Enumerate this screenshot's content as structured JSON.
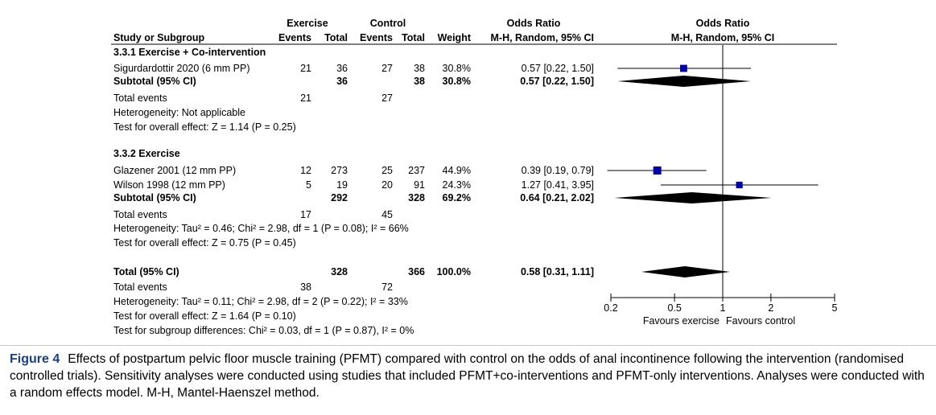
{
  "chart_data": {
    "type": "forest",
    "headers": {
      "exercise": "Exercise",
      "control": "Control",
      "odds_ratio_text": "Odds Ratio",
      "odds_ratio_plot": "Odds Ratio",
      "study": "Study or Subgroup",
      "events1": "Events",
      "total1": "Total",
      "events2": "Events",
      "total2": "Total",
      "weight": "Weight",
      "method_text": "M-H, Random, 95% CI",
      "method_plot": "M-H, Random, 95% CI"
    },
    "subgroups": [
      {
        "title": "3.3.1 Exercise + Co-intervention",
        "studies": [
          {
            "name": "Sigurdardottir 2020 (6 mm PP)",
            "e1": "21",
            "t1": "36",
            "e2": "27",
            "t2": "38",
            "weight": "30.8%",
            "ci_text": "0.57 [0.22, 1.50]",
            "or": 0.57,
            "low": 0.22,
            "high": 1.5,
            "w": 30.8
          }
        ],
        "subtotal": {
          "label": "Subtotal (95% CI)",
          "t1": "36",
          "t2": "38",
          "weight": "30.8%",
          "ci_text": "0.57 [0.22, 1.50]",
          "or": 0.57,
          "low": 0.22,
          "high": 1.5
        },
        "total_events": {
          "label": "Total events",
          "e1": "21",
          "e2": "27"
        },
        "heterogeneity": "Heterogeneity: Not applicable",
        "overall_effect": "Test for overall effect: Z = 1.14 (P = 0.25)"
      },
      {
        "title": "3.3.2 Exercise",
        "studies": [
          {
            "name": "Glazener 2001 (12 mm PP)",
            "e1": "12",
            "t1": "273",
            "e2": "25",
            "t2": "237",
            "weight": "44.9%",
            "ci_text": "0.39 [0.19, 0.79]",
            "or": 0.39,
            "low": 0.19,
            "high": 0.79,
            "w": 44.9
          },
          {
            "name": "Wilson 1998 (12 mm PP)",
            "e1": "5",
            "t1": "19",
            "e2": "20",
            "t2": "91",
            "weight": "24.3%",
            "ci_text": "1.27 [0.41, 3.95]",
            "or": 1.27,
            "low": 0.41,
            "high": 3.95,
            "w": 24.3
          }
        ],
        "subtotal": {
          "label": "Subtotal (95% CI)",
          "t1": "292",
          "t2": "328",
          "weight": "69.2%",
          "ci_text": "0.64 [0.21, 2.02]",
          "or": 0.64,
          "low": 0.21,
          "high": 2.02
        },
        "total_events": {
          "label": "Total events",
          "e1": "17",
          "e2": "45"
        },
        "heterogeneity": "Heterogeneity: Tau² = 0.46; Chi² = 2.98, df = 1 (P = 0.08); I² = 66%",
        "overall_effect": "Test for overall effect: Z = 0.75 (P = 0.45)"
      }
    ],
    "total": {
      "label": "Total (95% CI)",
      "t1": "328",
      "t2": "366",
      "weight": "100.0%",
      "ci_text": "0.58 [0.31, 1.11]",
      "or": 0.58,
      "low": 0.31,
      "high": 1.11,
      "total_events": {
        "label": "Total events",
        "e1": "38",
        "e2": "72"
      },
      "heterogeneity": "Heterogeneity: Tau² = 0.11; Chi² = 2.98, df = 2 (P = 0.22); I² = 33%",
      "overall_effect": "Test for overall effect: Z = 1.64 (P = 0.10)",
      "subgroup_diff": "Test for subgroup differences: Chi² = 0.03, df = 1 (P = 0.87), I² = 0%"
    },
    "axis": {
      "scale": "log",
      "ticks": [
        0.2,
        0.5,
        1,
        2,
        5
      ],
      "tick_labels": [
        "0.2",
        "0.5",
        "1",
        "2",
        "5"
      ],
      "xlim": [
        0.2,
        5
      ],
      "left_label": "Favours exercise",
      "right_label": "Favours control"
    },
    "colors": {
      "marker": "#0000a8",
      "caption_label": "#1a3e8c"
    }
  },
  "caption": {
    "label": "Figure 4",
    "text": "Effects of postpartum pelvic floor muscle training (PFMT) compared with control on the odds of anal incontinence following the intervention (randomised controlled trials). Sensitivity analyses were conducted using studies that included PFMT+co-interventions and PFMT-only interventions. Analyses were conducted with a random effects model. M-H, Mantel-Haenszel method."
  }
}
